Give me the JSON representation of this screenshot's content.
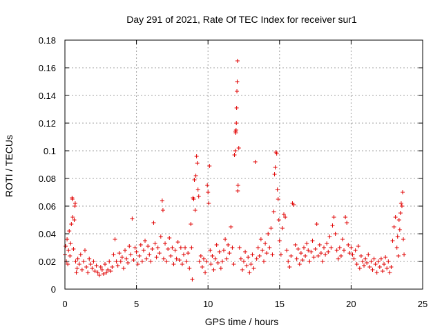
{
  "chart_data": {
    "type": "scatter",
    "title": "Day 291 of 2021, Rate Of TEC Index for receiver sur1",
    "xlabel": "GPS time / hours",
    "ylabel": "ROTI / TECUs",
    "xlim": [
      0,
      25
    ],
    "ylim": [
      0,
      0.18
    ],
    "xticks": [
      0,
      5,
      10,
      15,
      20,
      25
    ],
    "xtick_labels": [
      "0",
      "5",
      "10",
      "15",
      "20",
      "25"
    ],
    "yticks": [
      0,
      0.02,
      0.04,
      0.06,
      0.08,
      0.1,
      0.12,
      0.14,
      0.16,
      0.18
    ],
    "ytick_labels": [
      "0",
      "0.02",
      "0.04",
      "0.06",
      "0.08",
      "0.1",
      "0.12",
      "0.14",
      "0.16",
      "0.18"
    ],
    "grid": true,
    "marker": "plus",
    "color": "#e00000",
    "series": [
      {
        "points": [
          [
            0.0,
            0.025
          ],
          [
            0.05,
            0.031
          ],
          [
            0.1,
            0.02
          ],
          [
            0.15,
            0.036
          ],
          [
            0.2,
            0.018
          ],
          [
            0.25,
            0.028
          ],
          [
            0.3,
            0.042
          ],
          [
            0.35,
            0.024
          ],
          [
            0.4,
            0.033
          ],
          [
            0.45,
            0.047
          ],
          [
            0.5,
            0.066
          ],
          [
            0.52,
            0.065
          ],
          [
            0.55,
            0.052
          ],
          [
            0.6,
            0.029
          ],
          [
            0.65,
            0.05
          ],
          [
            0.7,
            0.06
          ],
          [
            0.72,
            0.062
          ],
          [
            0.75,
            0.02
          ],
          [
            0.8,
            0.012
          ],
          [
            0.85,
            0.015
          ],
          [
            0.9,
            0.022
          ],
          [
            1.0,
            0.018
          ],
          [
            1.1,
            0.025
          ],
          [
            1.2,
            0.014
          ],
          [
            1.3,
            0.02
          ],
          [
            1.4,
            0.028
          ],
          [
            1.5,
            0.016
          ],
          [
            1.6,
            0.012
          ],
          [
            1.7,
            0.022
          ],
          [
            1.8,
            0.018
          ],
          [
            1.9,
            0.015
          ],
          [
            2.0,
            0.02
          ],
          [
            2.1,
            0.013
          ],
          [
            2.2,
            0.017
          ],
          [
            2.3,
            0.012
          ],
          [
            2.4,
            0.01
          ],
          [
            2.5,
            0.016
          ],
          [
            2.6,
            0.014
          ],
          [
            2.7,
            0.011
          ],
          [
            2.8,
            0.018
          ],
          [
            2.9,
            0.012
          ],
          [
            3.0,
            0.014
          ],
          [
            3.1,
            0.02
          ],
          [
            3.2,
            0.013
          ],
          [
            3.3,
            0.016
          ],
          [
            3.4,
            0.025
          ],
          [
            3.5,
            0.036
          ],
          [
            3.6,
            0.02
          ],
          [
            3.7,
            0.017
          ],
          [
            3.8,
            0.026
          ],
          [
            3.9,
            0.02
          ],
          [
            4.0,
            0.023
          ],
          [
            4.1,
            0.015
          ],
          [
            4.2,
            0.028
          ],
          [
            4.3,
            0.022
          ],
          [
            4.4,
            0.019
          ],
          [
            4.5,
            0.031
          ],
          [
            4.6,
            0.025
          ],
          [
            4.7,
            0.051
          ],
          [
            4.8,
            0.021
          ],
          [
            4.9,
            0.03
          ],
          [
            5.0,
            0.027
          ],
          [
            5.1,
            0.018
          ],
          [
            5.2,
            0.024
          ],
          [
            5.3,
            0.032
          ],
          [
            5.4,
            0.02
          ],
          [
            5.5,
            0.028
          ],
          [
            5.6,
            0.035
          ],
          [
            5.7,
            0.022
          ],
          [
            5.8,
            0.031
          ],
          [
            5.9,
            0.025
          ],
          [
            6.0,
            0.02
          ],
          [
            6.1,
            0.029
          ],
          [
            6.2,
            0.048
          ],
          [
            6.3,
            0.033
          ],
          [
            6.4,
            0.023
          ],
          [
            6.5,
            0.03
          ],
          [
            6.6,
            0.026
          ],
          [
            6.7,
            0.038
          ],
          [
            6.8,
            0.064
          ],
          [
            6.85,
            0.057
          ],
          [
            6.9,
            0.022
          ],
          [
            7.0,
            0.033
          ],
          [
            7.1,
            0.02
          ],
          [
            7.2,
            0.029
          ],
          [
            7.3,
            0.037
          ],
          [
            7.4,
            0.024
          ],
          [
            7.5,
            0.03
          ],
          [
            7.6,
            0.018
          ],
          [
            7.7,
            0.028
          ],
          [
            7.8,
            0.022
          ],
          [
            7.9,
            0.034
          ],
          [
            8.0,
            0.021
          ],
          [
            8.1,
            0.03
          ],
          [
            8.2,
            0.018
          ],
          [
            8.3,
            0.025
          ],
          [
            8.4,
            0.03
          ],
          [
            8.5,
            0.02
          ],
          [
            8.6,
            0.026
          ],
          [
            8.7,
            0.015
          ],
          [
            8.8,
            0.047
          ],
          [
            8.85,
            0.03
          ],
          [
            8.9,
            0.007
          ],
          [
            8.95,
            0.066
          ],
          [
            9.0,
            0.065
          ],
          [
            9.05,
            0.079
          ],
          [
            9.1,
            0.057
          ],
          [
            9.15,
            0.082
          ],
          [
            9.2,
            0.096
          ],
          [
            9.25,
            0.091
          ],
          [
            9.3,
            0.072
          ],
          [
            9.35,
            0.067
          ],
          [
            9.4,
            0.02
          ],
          [
            9.5,
            0.024
          ],
          [
            9.6,
            0.016
          ],
          [
            9.7,
            0.022
          ],
          [
            9.8,
            0.012
          ],
          [
            9.9,
            0.02
          ],
          [
            9.95,
            0.075
          ],
          [
            10.0,
            0.07
          ],
          [
            10.05,
            0.062
          ],
          [
            10.1,
            0.089
          ],
          [
            10.15,
            0.028
          ],
          [
            10.2,
            0.018
          ],
          [
            10.3,
            0.024
          ],
          [
            10.4,
            0.014
          ],
          [
            10.5,
            0.022
          ],
          [
            10.6,
            0.032
          ],
          [
            10.7,
            0.019
          ],
          [
            10.8,
            0.027
          ],
          [
            10.9,
            0.015
          ],
          [
            11.0,
            0.02
          ],
          [
            11.1,
            0.028
          ],
          [
            11.2,
            0.036
          ],
          [
            11.3,
            0.022
          ],
          [
            11.4,
            0.032
          ],
          [
            11.5,
            0.026
          ],
          [
            11.6,
            0.045
          ],
          [
            11.7,
            0.03
          ],
          [
            11.8,
            0.018
          ],
          [
            11.85,
            0.097
          ],
          [
            11.9,
            0.1
          ],
          [
            11.92,
            0.114
          ],
          [
            11.94,
            0.113
          ],
          [
            11.96,
            0.115
          ],
          [
            11.98,
            0.12
          ],
          [
            12.0,
            0.131
          ],
          [
            12.02,
            0.143
          ],
          [
            12.04,
            0.15
          ],
          [
            12.06,
            0.165
          ],
          [
            12.08,
            0.071
          ],
          [
            12.1,
            0.075
          ],
          [
            12.15,
            0.102
          ],
          [
            12.2,
            0.03
          ],
          [
            12.3,
            0.022
          ],
          [
            12.4,
            0.014
          ],
          [
            12.5,
            0.02
          ],
          [
            12.6,
            0.027
          ],
          [
            12.7,
            0.017
          ],
          [
            12.8,
            0.023
          ],
          [
            12.9,
            0.012
          ],
          [
            13.0,
            0.018
          ],
          [
            13.1,
            0.025
          ],
          [
            13.2,
            0.015
          ],
          [
            13.3,
            0.092
          ],
          [
            13.4,
            0.022
          ],
          [
            13.5,
            0.03
          ],
          [
            13.6,
            0.024
          ],
          [
            13.7,
            0.036
          ],
          [
            13.8,
            0.028
          ],
          [
            13.9,
            0.02
          ],
          [
            14.0,
            0.033
          ],
          [
            14.1,
            0.026
          ],
          [
            14.2,
            0.04
          ],
          [
            14.3,
            0.03
          ],
          [
            14.4,
            0.044
          ],
          [
            14.5,
            0.025
          ],
          [
            14.6,
            0.056
          ],
          [
            14.65,
            0.083
          ],
          [
            14.7,
            0.088
          ],
          [
            14.75,
            0.099
          ],
          [
            14.8,
            0.098
          ],
          [
            14.85,
            0.072
          ],
          [
            14.9,
            0.065
          ],
          [
            14.95,
            0.05
          ],
          [
            15.0,
            0.035
          ],
          [
            15.1,
            0.025
          ],
          [
            15.2,
            0.044
          ],
          [
            15.3,
            0.054
          ],
          [
            15.4,
            0.052
          ],
          [
            15.5,
            0.028
          ],
          [
            15.6,
            0.02
          ],
          [
            15.7,
            0.016
          ],
          [
            15.8,
            0.024
          ],
          [
            15.9,
            0.062
          ],
          [
            16.0,
            0.061
          ],
          [
            16.1,
            0.032
          ],
          [
            16.2,
            0.022
          ],
          [
            16.3,
            0.029
          ],
          [
            16.4,
            0.018
          ],
          [
            16.5,
            0.026
          ],
          [
            16.6,
            0.021
          ],
          [
            16.7,
            0.03
          ],
          [
            16.8,
            0.024
          ],
          [
            16.9,
            0.033
          ],
          [
            17.0,
            0.028
          ],
          [
            17.1,
            0.02
          ],
          [
            17.2,
            0.027
          ],
          [
            17.3,
            0.035
          ],
          [
            17.4,
            0.023
          ],
          [
            17.5,
            0.029
          ],
          [
            17.6,
            0.047
          ],
          [
            17.7,
            0.024
          ],
          [
            17.8,
            0.032
          ],
          [
            17.9,
            0.026
          ],
          [
            18.0,
            0.02
          ],
          [
            18.1,
            0.03
          ],
          [
            18.2,
            0.025
          ],
          [
            18.3,
            0.033
          ],
          [
            18.4,
            0.027
          ],
          [
            18.5,
            0.038
          ],
          [
            18.6,
            0.03
          ],
          [
            18.7,
            0.046
          ],
          [
            18.8,
            0.052
          ],
          [
            18.9,
            0.04
          ],
          [
            19.0,
            0.028
          ],
          [
            19.1,
            0.022
          ],
          [
            19.2,
            0.03
          ],
          [
            19.3,
            0.024
          ],
          [
            19.4,
            0.036
          ],
          [
            19.5,
            0.028
          ],
          [
            19.6,
            0.052
          ],
          [
            19.7,
            0.048
          ],
          [
            19.8,
            0.032
          ],
          [
            19.9,
            0.026
          ],
          [
            20.0,
            0.03
          ],
          [
            20.1,
            0.025
          ],
          [
            20.2,
            0.022
          ],
          [
            20.3,
            0.028
          ],
          [
            20.4,
            0.018
          ],
          [
            20.5,
            0.031
          ],
          [
            20.6,
            0.015
          ],
          [
            20.7,
            0.024
          ],
          [
            20.8,
            0.02
          ],
          [
            20.9,
            0.017
          ],
          [
            21.0,
            0.022
          ],
          [
            21.1,
            0.019
          ],
          [
            21.2,
            0.025
          ],
          [
            21.3,
            0.016
          ],
          [
            21.4,
            0.02
          ],
          [
            21.5,
            0.014
          ],
          [
            21.6,
            0.022
          ],
          [
            21.7,
            0.018
          ],
          [
            21.8,
            0.012
          ],
          [
            21.9,
            0.02
          ],
          [
            22.0,
            0.016
          ],
          [
            22.1,
            0.022
          ],
          [
            22.2,
            0.013
          ],
          [
            22.3,
            0.018
          ],
          [
            22.4,
            0.023
          ],
          [
            22.5,
            0.015
          ],
          [
            22.6,
            0.02
          ],
          [
            22.7,
            0.012
          ],
          [
            22.8,
            0.016
          ],
          [
            22.9,
            0.035
          ],
          [
            23.0,
            0.045
          ],
          [
            23.1,
            0.052
          ],
          [
            23.2,
            0.03
          ],
          [
            23.25,
            0.038
          ],
          [
            23.3,
            0.024
          ],
          [
            23.35,
            0.05
          ],
          [
            23.4,
            0.043
          ],
          [
            23.45,
            0.055
          ],
          [
            23.5,
            0.062
          ],
          [
            23.55,
            0.06
          ],
          [
            23.6,
            0.07
          ],
          [
            23.65,
            0.036
          ],
          [
            23.7,
            0.025
          ]
        ]
      }
    ]
  }
}
